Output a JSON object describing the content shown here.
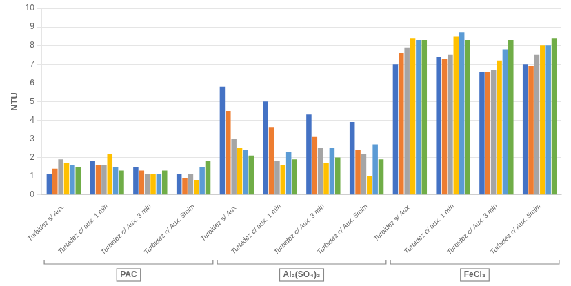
{
  "chart_data": {
    "type": "bar",
    "y_label": "NTU",
    "categories": [
      "Turbidez s/ Aux.",
      "Turbidez c/ aux. 1 min",
      "Turbidez c/ Aux. 3 min",
      "Turbidez c/ Aux. 5mim",
      "Turbidez s/ Aux.",
      "Turbidez c/ aux. 1 min",
      "Turbidez c/ Aux. 3 min",
      "Turbidez c/ Aux. 5mim",
      "Turbidez s/ Aux.",
      "Turbidez c/ aux. 1 min",
      "Turbidez c/ Aux. 3 min",
      "Turbidez c/ Aux. 5mim"
    ],
    "series": [
      {
        "color": "#4472C4",
        "values": [
          1.1,
          1.8,
          1.5,
          1.1,
          5.8,
          5.0,
          4.3,
          3.9,
          7.0,
          7.4,
          6.6,
          7.0
        ]
      },
      {
        "color": "#ED7D31",
        "values": [
          1.4,
          1.6,
          1.3,
          0.9,
          4.5,
          3.6,
          3.1,
          2.4,
          7.6,
          7.3,
          6.6,
          6.9
        ]
      },
      {
        "color": "#A5A5A5",
        "values": [
          1.9,
          1.6,
          1.1,
          1.1,
          3.0,
          1.8,
          2.5,
          2.2,
          7.9,
          7.5,
          6.7,
          7.5
        ]
      },
      {
        "color": "#FFC000",
        "values": [
          1.7,
          2.2,
          1.1,
          0.8,
          2.5,
          1.6,
          1.7,
          1.0,
          8.4,
          8.5,
          7.2,
          8.0
        ]
      },
      {
        "color": "#5B9BD5",
        "values": [
          1.6,
          1.5,
          1.1,
          1.5,
          2.4,
          2.3,
          2.5,
          2.7,
          8.3,
          8.7,
          7.8,
          8.0
        ]
      },
      {
        "color": "#70AD47",
        "values": [
          1.5,
          1.3,
          1.3,
          1.8,
          2.1,
          1.9,
          2.0,
          1.9,
          8.3,
          8.3,
          8.3,
          8.4
        ]
      }
    ],
    "category_groups": [
      {
        "label": "PAC",
        "from": 0,
        "to": 3
      },
      {
        "label": "Al₂(SO₄)₃",
        "from": 4,
        "to": 7
      },
      {
        "label": "FeCl₃",
        "from": 8,
        "to": 11
      }
    ],
    "ylim": [
      0,
      10
    ],
    "yticks": [
      0,
      1,
      2,
      3,
      4,
      5,
      6,
      7,
      8,
      9,
      10
    ],
    "grid": true
  }
}
